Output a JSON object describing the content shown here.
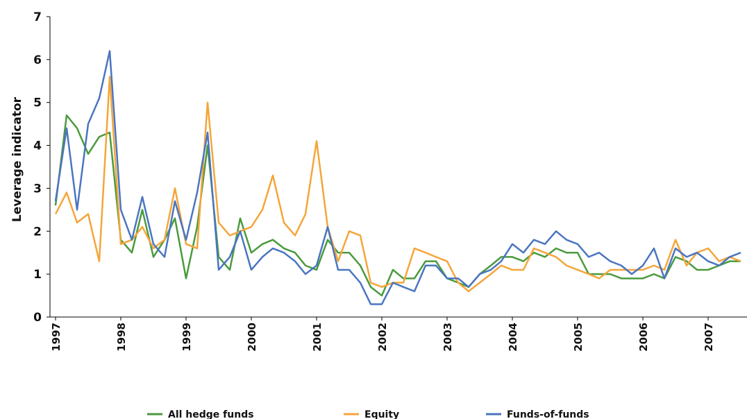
{
  "chart_data": {
    "type": "line",
    "y_label": "Leverage indicator",
    "x": [
      1997,
      1997.17,
      1997.33,
      1997.5,
      1997.67,
      1997.83,
      1998,
      1998.17,
      1998.33,
      1998.5,
      1998.67,
      1998.83,
      1999,
      1999.17,
      1999.33,
      1999.5,
      1999.67,
      1999.83,
      2000,
      2000.17,
      2000.33,
      2000.5,
      2000.67,
      2000.83,
      2001,
      2001.17,
      2001.33,
      2001.5,
      2001.67,
      2001.83,
      2002,
      2002.17,
      2002.33,
      2002.5,
      2002.67,
      2002.83,
      2003,
      2003.17,
      2003.33,
      2003.5,
      2003.67,
      2003.83,
      2004,
      2004.17,
      2004.33,
      2004.5,
      2004.67,
      2004.83,
      2005,
      2005.17,
      2005.33,
      2005.5,
      2005.67,
      2005.83,
      2006,
      2006.17,
      2006.33,
      2006.5,
      2006.67,
      2006.83,
      2007,
      2007.17,
      2007.33,
      2007.5
    ],
    "series": [
      {
        "name": "All hedge funds",
        "color": "#4a9a3c",
        "values": [
          2.6,
          4.7,
          4.4,
          3.8,
          4.2,
          4.3,
          1.8,
          1.5,
          2.5,
          1.4,
          1.8,
          2.3,
          0.9,
          2.1,
          4.0,
          1.4,
          1.1,
          2.3,
          1.5,
          1.7,
          1.8,
          1.6,
          1.5,
          1.2,
          1.1,
          1.8,
          1.5,
          1.5,
          1.2,
          0.7,
          0.5,
          1.1,
          0.9,
          0.9,
          1.3,
          1.3,
          0.9,
          0.8,
          0.7,
          1.0,
          1.2,
          1.4,
          1.4,
          1.3,
          1.5,
          1.4,
          1.6,
          1.5,
          1.5,
          1.0,
          1.0,
          1.0,
          0.9,
          0.9,
          0.9,
          1.0,
          0.9,
          1.4,
          1.3,
          1.1,
          1.1,
          1.2,
          1.3,
          1.3
        ]
      },
      {
        "name": "Equity",
        "color": "#f5a53a",
        "values": [
          2.4,
          2.9,
          2.2,
          2.4,
          1.3,
          5.6,
          1.7,
          1.8,
          2.1,
          1.6,
          1.8,
          3.0,
          1.7,
          1.6,
          5.0,
          2.2,
          1.9,
          2.0,
          2.1,
          2.5,
          3.3,
          2.2,
          1.9,
          2.4,
          4.1,
          2.1,
          1.3,
          2.0,
          1.9,
          0.8,
          0.7,
          0.8,
          0.8,
          1.6,
          1.5,
          1.4,
          1.3,
          0.8,
          0.6,
          0.8,
          1.0,
          1.2,
          1.1,
          1.1,
          1.6,
          1.5,
          1.4,
          1.2,
          1.1,
          1.0,
          0.9,
          1.1,
          1.1,
          1.1,
          1.1,
          1.2,
          1.1,
          1.8,
          1.2,
          1.5,
          1.6,
          1.3,
          1.4,
          1.3
        ]
      },
      {
        "name": "Funds-of-funds",
        "color": "#4a75c0",
        "values": [
          2.7,
          4.4,
          2.5,
          4.5,
          5.1,
          6.2,
          2.5,
          1.8,
          2.8,
          1.7,
          1.4,
          2.7,
          1.8,
          2.9,
          4.3,
          1.1,
          1.4,
          2.0,
          1.1,
          1.4,
          1.6,
          1.5,
          1.3,
          1.0,
          1.2,
          2.1,
          1.1,
          1.1,
          0.8,
          0.3,
          0.3,
          0.8,
          0.7,
          0.6,
          1.2,
          1.2,
          0.9,
          0.9,
          0.7,
          1.0,
          1.1,
          1.3,
          1.7,
          1.5,
          1.8,
          1.7,
          2.0,
          1.8,
          1.7,
          1.4,
          1.5,
          1.3,
          1.2,
          1.0,
          1.2,
          1.6,
          0.9,
          1.6,
          1.4,
          1.5,
          1.3,
          1.2,
          1.4,
          1.5
        ]
      }
    ],
    "xlim": [
      1997,
      2007.6
    ],
    "xticks": [
      1997,
      1998,
      1999,
      2000,
      2001,
      2002,
      2003,
      2004,
      2005,
      2006,
      2007
    ],
    "ylim": [
      0,
      7
    ],
    "yticks": [
      0,
      1,
      2,
      3,
      4,
      5,
      6,
      7
    ],
    "grid": false,
    "legend": "bottom"
  }
}
